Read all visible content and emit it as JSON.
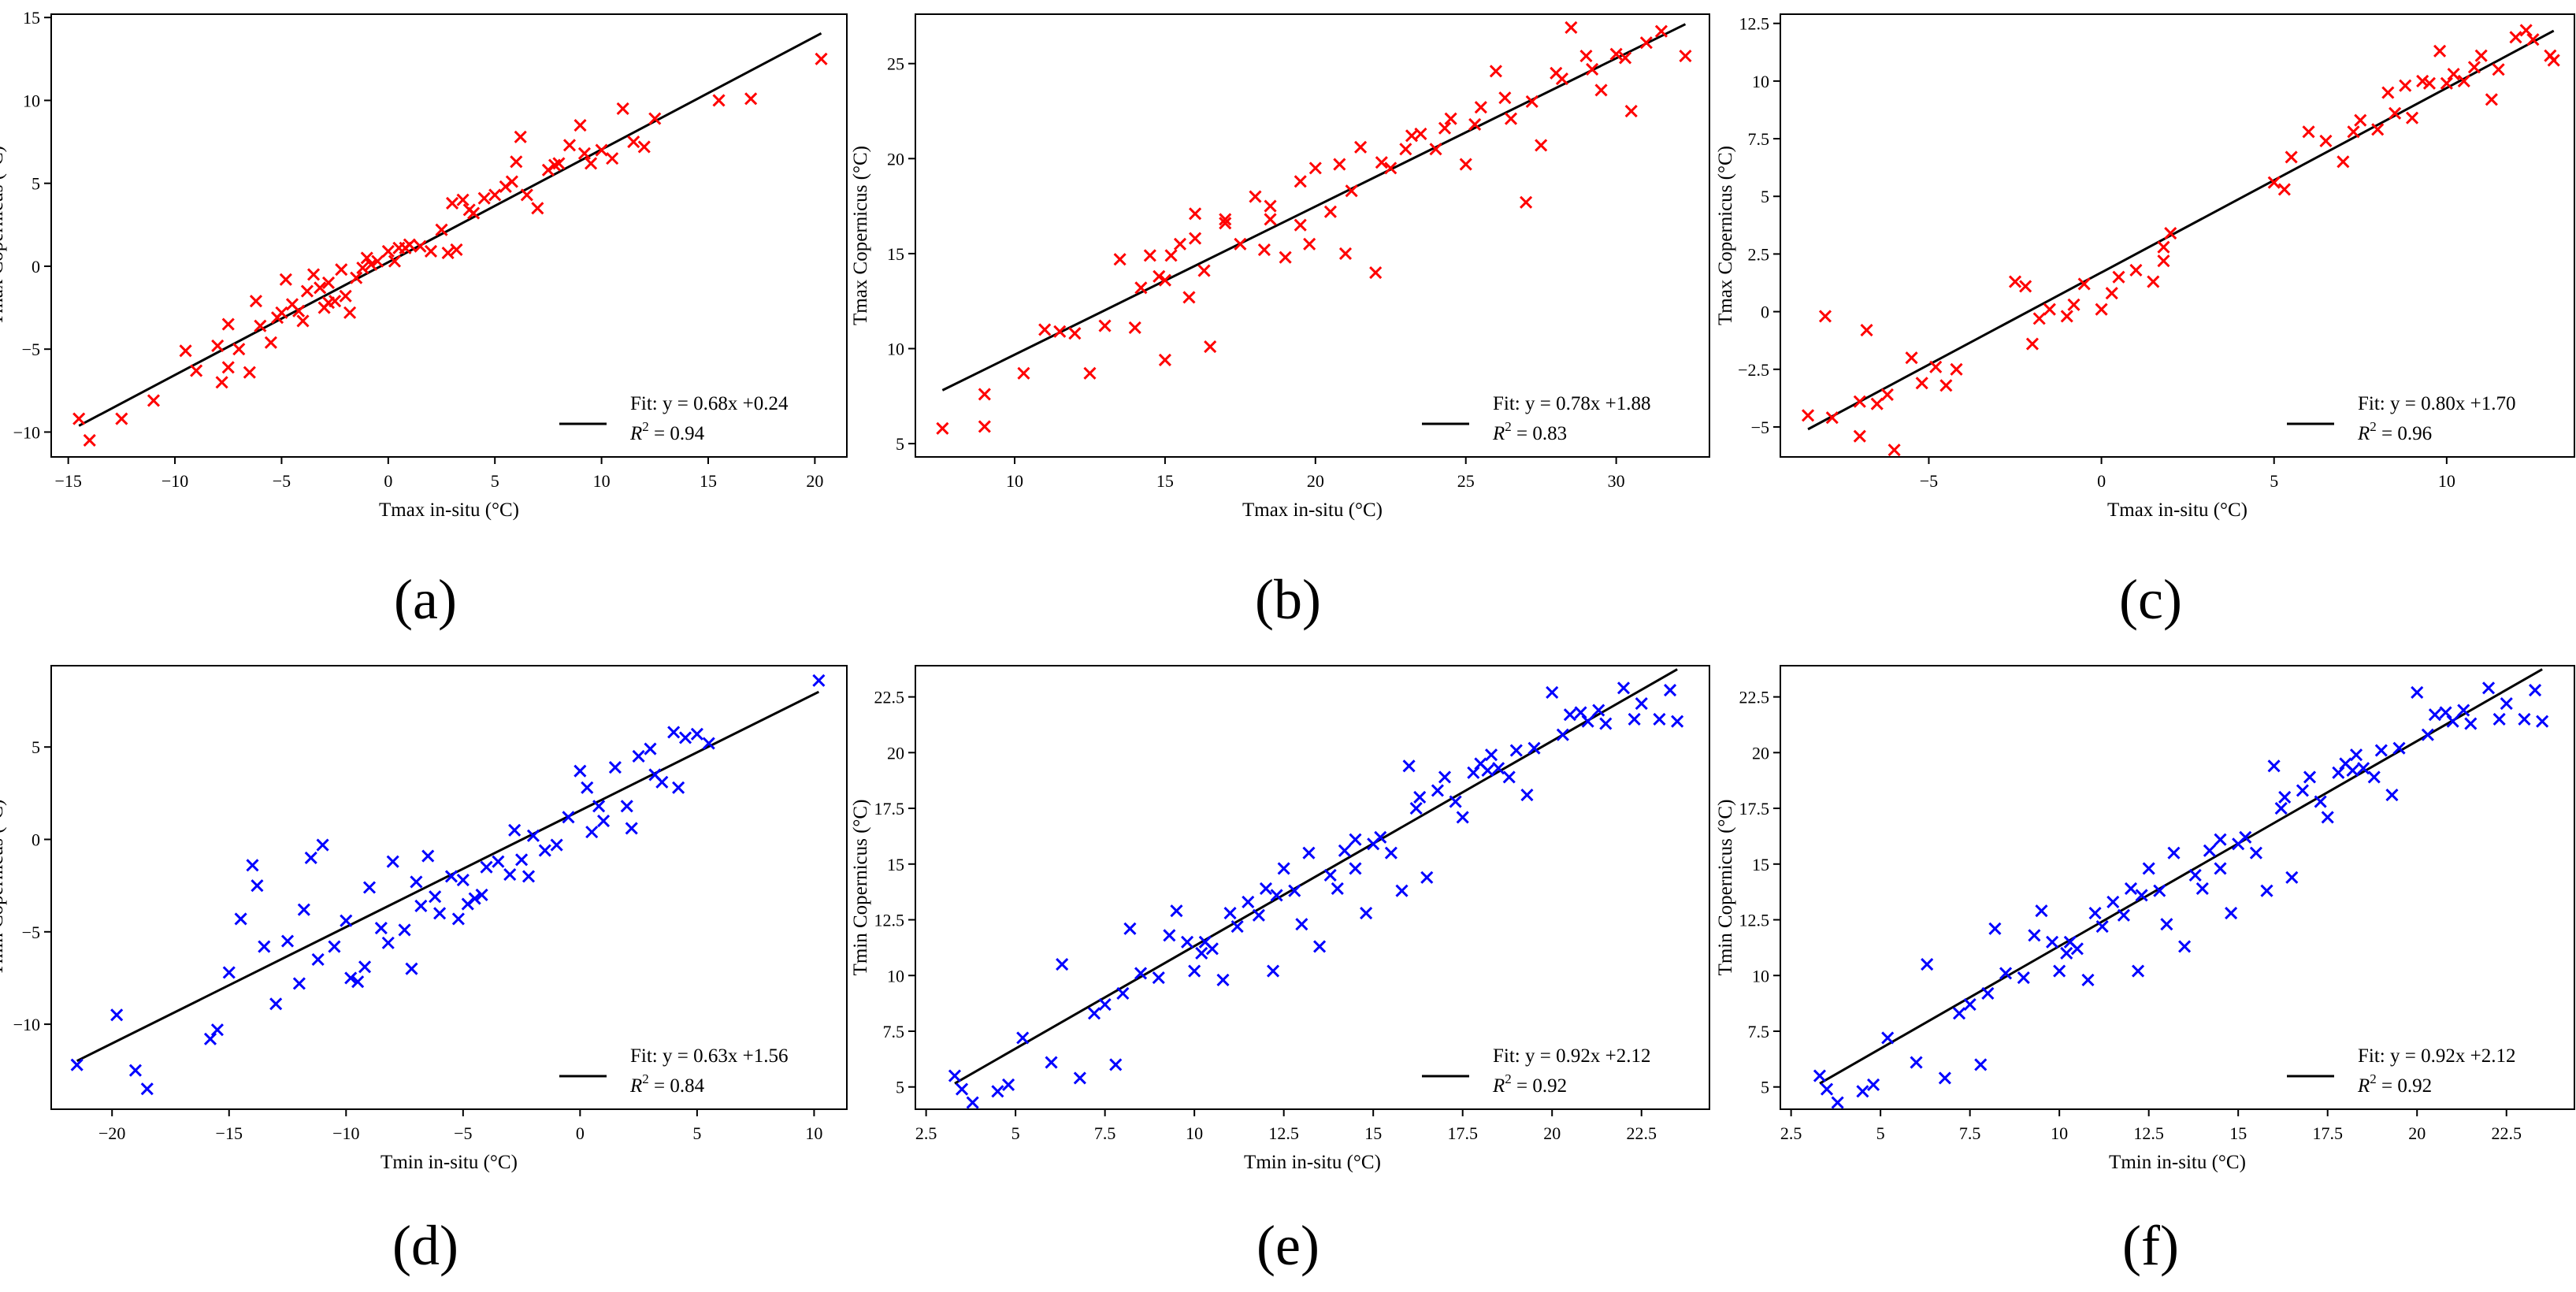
{
  "chart_data": [
    {
      "type": "scatter",
      "panel": "(a)",
      "xlabel": "Tmax in-situ (°C)",
      "ylabel": "Tmax Copernicus (°C)",
      "xlim": [
        -15.8,
        21.5
      ],
      "ylim": [
        -11.5,
        15.2
      ],
      "xticks": [
        -15,
        -10,
        -5,
        0,
        5,
        10,
        15,
        20
      ],
      "yticks": [
        -10,
        -5,
        0,
        5,
        10,
        15
      ],
      "marker_color": "#ff0000",
      "fit": {
        "slope": 0.68,
        "intercept": 0.24,
        "line_x": [
          -14.5,
          20.3
        ],
        "label": "Fit: y = 0.68x  +0.24",
        "r2_value": "= 0.94"
      },
      "x": [
        -14.5,
        -14,
        -12.5,
        -11,
        -9.5,
        -9,
        -8,
        -7.8,
        -7.5,
        -7,
        -6.5,
        -6.2,
        -6,
        -5.5,
        -5.2,
        -5,
        -4.8,
        -4.5,
        -4,
        -3.8,
        -3.5,
        -3.2,
        -3,
        -2.8,
        -2.5,
        -2.2,
        -2,
        -1.8,
        -1.5,
        -1,
        -0.8,
        -0.5,
        0,
        0.3,
        0.5,
        1,
        1.5,
        2,
        2.5,
        3,
        3.2,
        3.5,
        4,
        4.5,
        5,
        5.5,
        6,
        6.2,
        6.5,
        7,
        7.5,
        8,
        8.5,
        9,
        9.5,
        10,
        10.5,
        11,
        11.5,
        12,
        12.5,
        15.5,
        17,
        20.3,
        -7.5,
        -4.2,
        -2.8,
        -1.2,
        0.8,
        2.8,
        3.8,
        5.8,
        7.8,
        9.2
      ],
      "y": [
        -9.2,
        -10.5,
        -9.2,
        -8.1,
        -5.1,
        -6.3,
        -4.8,
        -7,
        -6.1,
        -5,
        -6.4,
        -2.1,
        -3.6,
        -4.6,
        -3.1,
        -2.8,
        -0.8,
        -2.3,
        -3.3,
        -1.5,
        -0.5,
        -1.3,
        -2.5,
        -1,
        -2.1,
        -0.2,
        -1.8,
        -2.8,
        -0.7,
        0.5,
        0.1,
        0.3,
        0.9,
        0.3,
        1.1,
        1.3,
        1.2,
        0.9,
        2.2,
        3.8,
        1,
        4,
        3.2,
        4.1,
        4.3,
        4.8,
        6.3,
        7.8,
        4.3,
        3.5,
        5.8,
        6.2,
        7.3,
        8.5,
        6.2,
        7,
        6.5,
        9.5,
        7.5,
        7.2,
        8.9,
        10,
        10.1,
        12.5,
        -3.5,
        -2.7,
        -2.2,
        -0.1,
        1.1,
        0.8,
        3.4,
        5.1,
        6.1,
        6.8
      ]
    },
    {
      "type": "scatter",
      "panel": "(b)",
      "xlabel": "Tmax in-situ (°C)",
      "ylabel": "Tmax Copernicus (°C)",
      "xlim": [
        6.7,
        33.1
      ],
      "ylim": [
        4.3,
        27.6
      ],
      "xticks": [
        10,
        15,
        20,
        25,
        30
      ],
      "yticks": [
        5,
        10,
        15,
        20,
        25
      ],
      "marker_color": "#ff0000",
      "fit": {
        "slope": 0.78,
        "intercept": 1.88,
        "line_x": [
          7.6,
          32.3
        ],
        "label": "Fit: y = 0.78x  +1.88",
        "r2_value": "= 0.83"
      },
      "x": [
        7.6,
        9,
        9,
        10.3,
        11,
        11.5,
        12,
        12.5,
        13,
        13.5,
        14,
        14.2,
        14.5,
        14.8,
        15,
        15.2,
        15.5,
        15.8,
        16,
        16.3,
        16.5,
        17,
        17.5,
        18,
        18.3,
        18.5,
        19,
        19.5,
        19.8,
        20,
        20.5,
        20.8,
        21,
        21.5,
        22,
        22.5,
        23,
        23.5,
        24,
        24.5,
        25,
        25.5,
        26,
        26.5,
        27,
        27.2,
        27.5,
        28,
        28.5,
        29,
        29.5,
        30,
        30.5,
        31,
        31.5,
        32.3,
        15,
        16,
        17,
        18.5,
        19.5,
        21.2,
        22.2,
        23.2,
        24.3,
        25.3,
        26.3,
        28.2,
        29.2,
        30.3
      ],
      "y": [
        5.8,
        5.9,
        7.6,
        8.7,
        11,
        10.9,
        10.8,
        8.7,
        11.2,
        14.7,
        11.1,
        13.2,
        14.9,
        13.8,
        9.4,
        14.9,
        15.5,
        12.7,
        17.1,
        14.1,
        10.1,
        16.8,
        15.5,
        18,
        15.2,
        16.8,
        14.8,
        16.5,
        15.5,
        19.5,
        17.2,
        19.7,
        15,
        20.6,
        14,
        19.5,
        20.5,
        21.3,
        20.5,
        22.1,
        19.7,
        22.7,
        24.6,
        22.1,
        17.7,
        23,
        20.7,
        24.5,
        26.9,
        25.4,
        23.6,
        25.5,
        22.5,
        26.1,
        26.7,
        25.4,
        13.6,
        15.8,
        16.6,
        17.5,
        18.8,
        18.3,
        19.8,
        21.2,
        21.6,
        21.8,
        23.2,
        24.2,
        24.7,
        25.3
      ]
    },
    {
      "type": "scatter",
      "panel": "(c)",
      "xlabel": "Tmax in-situ (°C)",
      "ylabel": "Tmax Copernicus (°C)",
      "xlim": [
        -9.3,
        13.7
      ],
      "ylim": [
        -6.3,
        12.9
      ],
      "xticks": [
        -5,
        0,
        5,
        10
      ],
      "yticks": [
        -5.0,
        -2.5,
        0.0,
        2.5,
        5.0,
        7.5,
        10.0,
        12.5
      ],
      "marker_color": "#ff0000",
      "fit": {
        "slope": 0.8,
        "intercept": 1.7,
        "line_x": [
          -8.5,
          13.1
        ],
        "label": "Fit: y = 0.80x  +1.70",
        "r2_value": "= 0.96"
      },
      "x": [
        -8.5,
        -8,
        -7.8,
        -7,
        -6.8,
        -6.5,
        -6.2,
        -6,
        -5.5,
        -5.2,
        -4.8,
        -4.5,
        -4.2,
        -2.5,
        -2.2,
        -2,
        -1.8,
        -1.5,
        -1,
        -0.8,
        -0.5,
        0,
        0.3,
        0.5,
        1,
        1.5,
        1.8,
        2,
        5,
        5.3,
        5.5,
        6,
        6.5,
        7,
        7.3,
        7.5,
        8,
        8.3,
        8.5,
        9,
        9.3,
        9.5,
        9.8,
        10,
        10.2,
        10.5,
        11,
        11.3,
        11.5,
        12,
        12.3,
        12.5,
        13,
        13.1,
        -7,
        1.8,
        8.8,
        10.8
      ],
      "y": [
        -4.5,
        -0.2,
        -4.6,
        -3.9,
        -0.8,
        -4,
        -3.6,
        -6,
        -2,
        -3.1,
        -2.4,
        -3.2,
        -2.5,
        1.3,
        1.1,
        -1.4,
        -0.3,
        0.1,
        -0.2,
        0.3,
        1.2,
        0.1,
        0.8,
        1.5,
        1.8,
        1.3,
        2.2,
        3.4,
        5.6,
        5.3,
        6.7,
        7.8,
        7.4,
        6.5,
        7.8,
        8.3,
        7.9,
        9.5,
        8.6,
        8.4,
        10,
        9.9,
        11.3,
        9.9,
        10.3,
        10,
        11.1,
        9.2,
        10.5,
        11.9,
        12.2,
        11.8,
        11.1,
        10.9,
        -5.4,
        2.8,
        9.8,
        10.6
      ]
    },
    {
      "type": "scatter",
      "panel": "(d)",
      "xlabel": "Tmin in-situ (°C)",
      "ylabel": "Tmin Copernicus (°C)",
      "xlim": [
        -22.6,
        11.4
      ],
      "ylim": [
        -14.6,
        9.4
      ],
      "xticks": [
        -20,
        -15,
        -10,
        -5,
        0,
        5,
        10
      ],
      "yticks": [
        -10,
        -5,
        0,
        5
      ],
      "marker_color": "#0000ff",
      "fit": {
        "slope": 0.63,
        "intercept": 1.56,
        "line_x": [
          -21.5,
          10.2
        ],
        "label": "Fit: y = 0.63x  +1.56",
        "r2_value": "= 0.84"
      },
      "x": [
        -21.5,
        -19.8,
        -19,
        -18.5,
        -15.8,
        -15.5,
        -15,
        -14.5,
        -14,
        -13.5,
        -13,
        -12.5,
        -12,
        -11.8,
        -11.5,
        -11,
        -10.5,
        -10,
        -9.8,
        -9.5,
        -9,
        -8.5,
        -8.2,
        -8,
        -7.5,
        -7.2,
        -7,
        -6.5,
        -6.2,
        -6,
        -5.5,
        -5.2,
        -5,
        -4.5,
        -4.2,
        -4,
        -3.5,
        -3,
        -2.8,
        -2.5,
        -2,
        -1.5,
        -1,
        -0.5,
        0,
        0.3,
        0.5,
        1,
        1.5,
        2,
        2.5,
        3,
        3.5,
        4,
        4.5,
        5,
        5.5,
        10.2,
        -13.8,
        -11.2,
        -9.2,
        -6.8,
        -4.8,
        -2.2,
        0.8,
        2.2,
        3.2,
        4.2
      ],
      "y": [
        -12.2,
        -9.5,
        -12.5,
        -13.5,
        -10.8,
        -10.3,
        -7.2,
        -4.3,
        -1.4,
        -5.8,
        -8.9,
        -5.5,
        -7.8,
        -3.8,
        -1,
        -0.3,
        -5.8,
        -4.4,
        -7.5,
        -7.7,
        -2.6,
        -4.8,
        -5.6,
        -1.2,
        -4.9,
        -7,
        -2.3,
        -0.9,
        -3.1,
        -4,
        -2,
        -4.3,
        -2.2,
        -3.2,
        -3,
        -1.5,
        -1.2,
        -1.9,
        0.5,
        -1.1,
        0.2,
        -0.6,
        -0.3,
        1.2,
        3.7,
        2.8,
        0.4,
        1,
        3.9,
        1.8,
        4.5,
        4.9,
        3.1,
        5.8,
        5.5,
        5.7,
        5.2,
        8.6,
        -2.5,
        -6.5,
        -6.9,
        -3.6,
        -3.5,
        -2,
        1.8,
        0.6,
        3.5,
        2.8
      ]
    },
    {
      "type": "scatter",
      "panel": "(e)",
      "xlabel": "Tmin in-situ (°C)",
      "ylabel": "Tmin Copernicus (°C)",
      "xlim": [
        2.2,
        24.4
      ],
      "ylim": [
        4.0,
        23.9
      ],
      "xticks": [
        2.5,
        5.0,
        7.5,
        10.0,
        12.5,
        15.0,
        17.5,
        20.0,
        22.5
      ],
      "yticks": [
        5.0,
        7.5,
        10.0,
        12.5,
        15.0,
        17.5,
        20.0,
        22.5
      ],
      "marker_color": "#0000ff",
      "fit": {
        "slope": 0.92,
        "intercept": 2.12,
        "line_x": [
          3.3,
          23.5
        ],
        "label": "Fit: y = 0.92x  +2.12",
        "r2_value": "= 0.92"
      },
      "x": [
        3.3,
        3.5,
        3.8,
        4.5,
        5.2,
        6,
        6.3,
        6.8,
        7.2,
        7.8,
        8,
        8.2,
        8.5,
        9,
        9.3,
        9.5,
        9.8,
        10,
        10.2,
        10.5,
        10.8,
        11,
        11.2,
        11.5,
        11.8,
        12,
        12.2,
        12.5,
        12.8,
        13,
        13.2,
        13.5,
        13.8,
        14,
        14.2,
        14.5,
        14.8,
        15,
        15.2,
        15.5,
        15.8,
        16,
        16.3,
        16.5,
        16.8,
        17,
        17.3,
        17.5,
        17.8,
        18,
        18.3,
        18.5,
        18.8,
        19,
        19.3,
        19.5,
        20,
        20.3,
        20.5,
        21,
        21.3,
        21.5,
        22,
        22.3,
        22.5,
        23,
        23.3,
        23.5,
        4.8,
        7.5,
        10.3,
        12.3,
        14.5,
        16.2,
        18.2,
        20.8
      ],
      "y": [
        5.5,
        4.9,
        4.3,
        4.8,
        7.2,
        6.1,
        10.5,
        5.4,
        8.3,
        6,
        9.2,
        12.1,
        10.1,
        9.9,
        11.8,
        12.9,
        11.5,
        10.2,
        11,
        11.2,
        9.8,
        12.8,
        12.2,
        13.3,
        12.7,
        13.9,
        10.2,
        14.8,
        13.8,
        12.3,
        15.5,
        11.3,
        14.5,
        13.9,
        15.6,
        16.1,
        12.8,
        15.9,
        16.2,
        15.5,
        13.8,
        19.4,
        18,
        14.4,
        18.3,
        18.9,
        17.8,
        17.1,
        19.1,
        19.5,
        19.9,
        19.3,
        18.9,
        20.1,
        18.1,
        20.2,
        22.7,
        20.8,
        21.7,
        21.4,
        21.9,
        21.3,
        22.9,
        21.5,
        22.2,
        21.5,
        22.8,
        21.4,
        5.1,
        8.7,
        11.5,
        13.6,
        14.8,
        17.5,
        19.2,
        21.8
      ]
    },
    {
      "type": "scatter",
      "panel": "(f)",
      "xlabel": "Tmin in-situ (°C)",
      "ylabel": "Tmin Copernicus (°C)",
      "xlim": [
        2.2,
        24.4
      ],
      "ylim": [
        4.0,
        23.9
      ],
      "xticks": [
        2.5,
        5.0,
        7.5,
        10.0,
        12.5,
        15.0,
        17.5,
        20.0,
        22.5
      ],
      "yticks": [
        5.0,
        7.5,
        10.0,
        12.5,
        15.0,
        17.5,
        20.0,
        22.5
      ],
      "marker_color": "#0000ff",
      "fit": {
        "slope": 0.92,
        "intercept": 2.12,
        "line_x": [
          3.3,
          23.5
        ],
        "label": "Fit: y = 0.92x  +2.12",
        "r2_value": "= 0.92"
      },
      "x": [
        3.3,
        3.5,
        3.8,
        4.5,
        5.2,
        6,
        6.3,
        6.8,
        7.2,
        7.8,
        8,
        8.2,
        8.5,
        9,
        9.3,
        9.5,
        9.8,
        10,
        10.2,
        10.5,
        10.8,
        11,
        11.2,
        11.5,
        11.8,
        12,
        12.2,
        12.5,
        12.8,
        13,
        13.2,
        13.5,
        13.8,
        14,
        14.2,
        14.5,
        14.8,
        15,
        15.2,
        15.5,
        15.8,
        16,
        16.3,
        16.5,
        16.8,
        17,
        17.3,
        17.5,
        17.8,
        18,
        18.3,
        18.5,
        18.8,
        19,
        19.3,
        19.5,
        20,
        20.3,
        20.5,
        21,
        21.3,
        21.5,
        22,
        22.3,
        22.5,
        23,
        23.3,
        23.5,
        4.8,
        7.5,
        10.3,
        12.3,
        14.5,
        16.2,
        18.2,
        20.8
      ],
      "y": [
        5.5,
        4.9,
        4.3,
        4.8,
        7.2,
        6.1,
        10.5,
        5.4,
        8.3,
        6,
        9.2,
        12.1,
        10.1,
        9.9,
        11.8,
        12.9,
        11.5,
        10.2,
        11,
        11.2,
        9.8,
        12.8,
        12.2,
        13.3,
        12.7,
        13.9,
        10.2,
        14.8,
        13.8,
        12.3,
        15.5,
        11.3,
        14.5,
        13.9,
        15.6,
        16.1,
        12.8,
        15.9,
        16.2,
        15.5,
        13.8,
        19.4,
        18,
        14.4,
        18.3,
        18.9,
        17.8,
        17.1,
        19.1,
        19.5,
        19.9,
        19.3,
        18.9,
        20.1,
        18.1,
        20.2,
        22.7,
        20.8,
        21.7,
        21.4,
        21.9,
        21.3,
        22.9,
        21.5,
        22.2,
        21.5,
        22.8,
        21.4,
        5.1,
        8.7,
        11.5,
        13.6,
        14.8,
        17.5,
        19.2,
        21.8
      ]
    }
  ],
  "captions": [
    "(a)",
    "(b)",
    "(c)",
    "(d)",
    "(e)",
    "(f)"
  ],
  "r2_label": "R",
  "r2_superscript": "2"
}
